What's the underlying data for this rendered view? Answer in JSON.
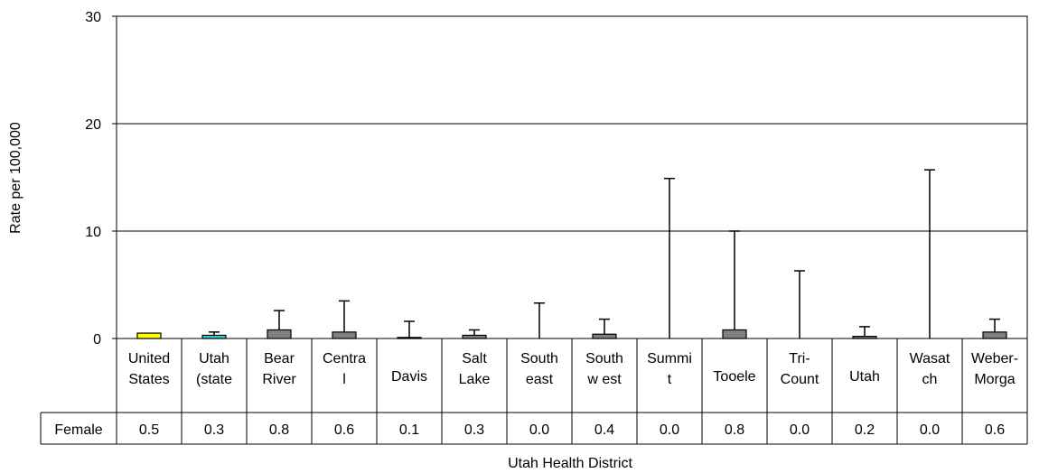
{
  "chart_data": {
    "type": "bar",
    "title": "",
    "xlabel": "Utah Health District",
    "ylabel": "Rate per 100,000",
    "ylim": [
      0,
      30
    ],
    "yticks": [
      "0",
      "10",
      "20",
      "30"
    ],
    "grid": true,
    "categories": [
      [
        "United",
        "States"
      ],
      [
        "Utah",
        "(state"
      ],
      [
        "Bear",
        "River"
      ],
      [
        "Centra",
        "l"
      ],
      [
        "Davis"
      ],
      [
        "Salt",
        "Lake"
      ],
      [
        "South",
        "east"
      ],
      [
        "South",
        "w est"
      ],
      [
        "Summi",
        "t"
      ],
      [
        "Tooele"
      ],
      [
        "Tri-",
        "Count"
      ],
      [
        "Utah"
      ],
      [
        "Wasat",
        "ch"
      ],
      [
        "Weber-",
        "Morga"
      ]
    ],
    "series": [
      {
        "name": "Female",
        "values": [
          0.5,
          0.3,
          0.8,
          0.6,
          0.1,
          0.3,
          0.0,
          0.4,
          0.0,
          0.8,
          0.0,
          0.2,
          0.0,
          0.6
        ],
        "value_labels": [
          "0.5",
          "0.3",
          "0.8",
          "0.6",
          "0.1",
          "0.3",
          "0.0",
          "0.4",
          "0.0",
          "0.8",
          "0.0",
          "0.2",
          "0.0",
          "0.6"
        ],
        "error_upper": [
          0.5,
          0.6,
          2.6,
          3.5,
          1.6,
          0.8,
          3.3,
          1.8,
          14.9,
          10.0,
          6.3,
          1.1,
          15.7,
          1.8
        ],
        "bar_colors": [
          "#FFFF00",
          "#33CCCC",
          "#808080",
          "#808080",
          "#808080",
          "#808080",
          "#808080",
          "#808080",
          "#808080",
          "#808080",
          "#808080",
          "#808080",
          "#808080",
          "#808080"
        ]
      }
    ]
  }
}
